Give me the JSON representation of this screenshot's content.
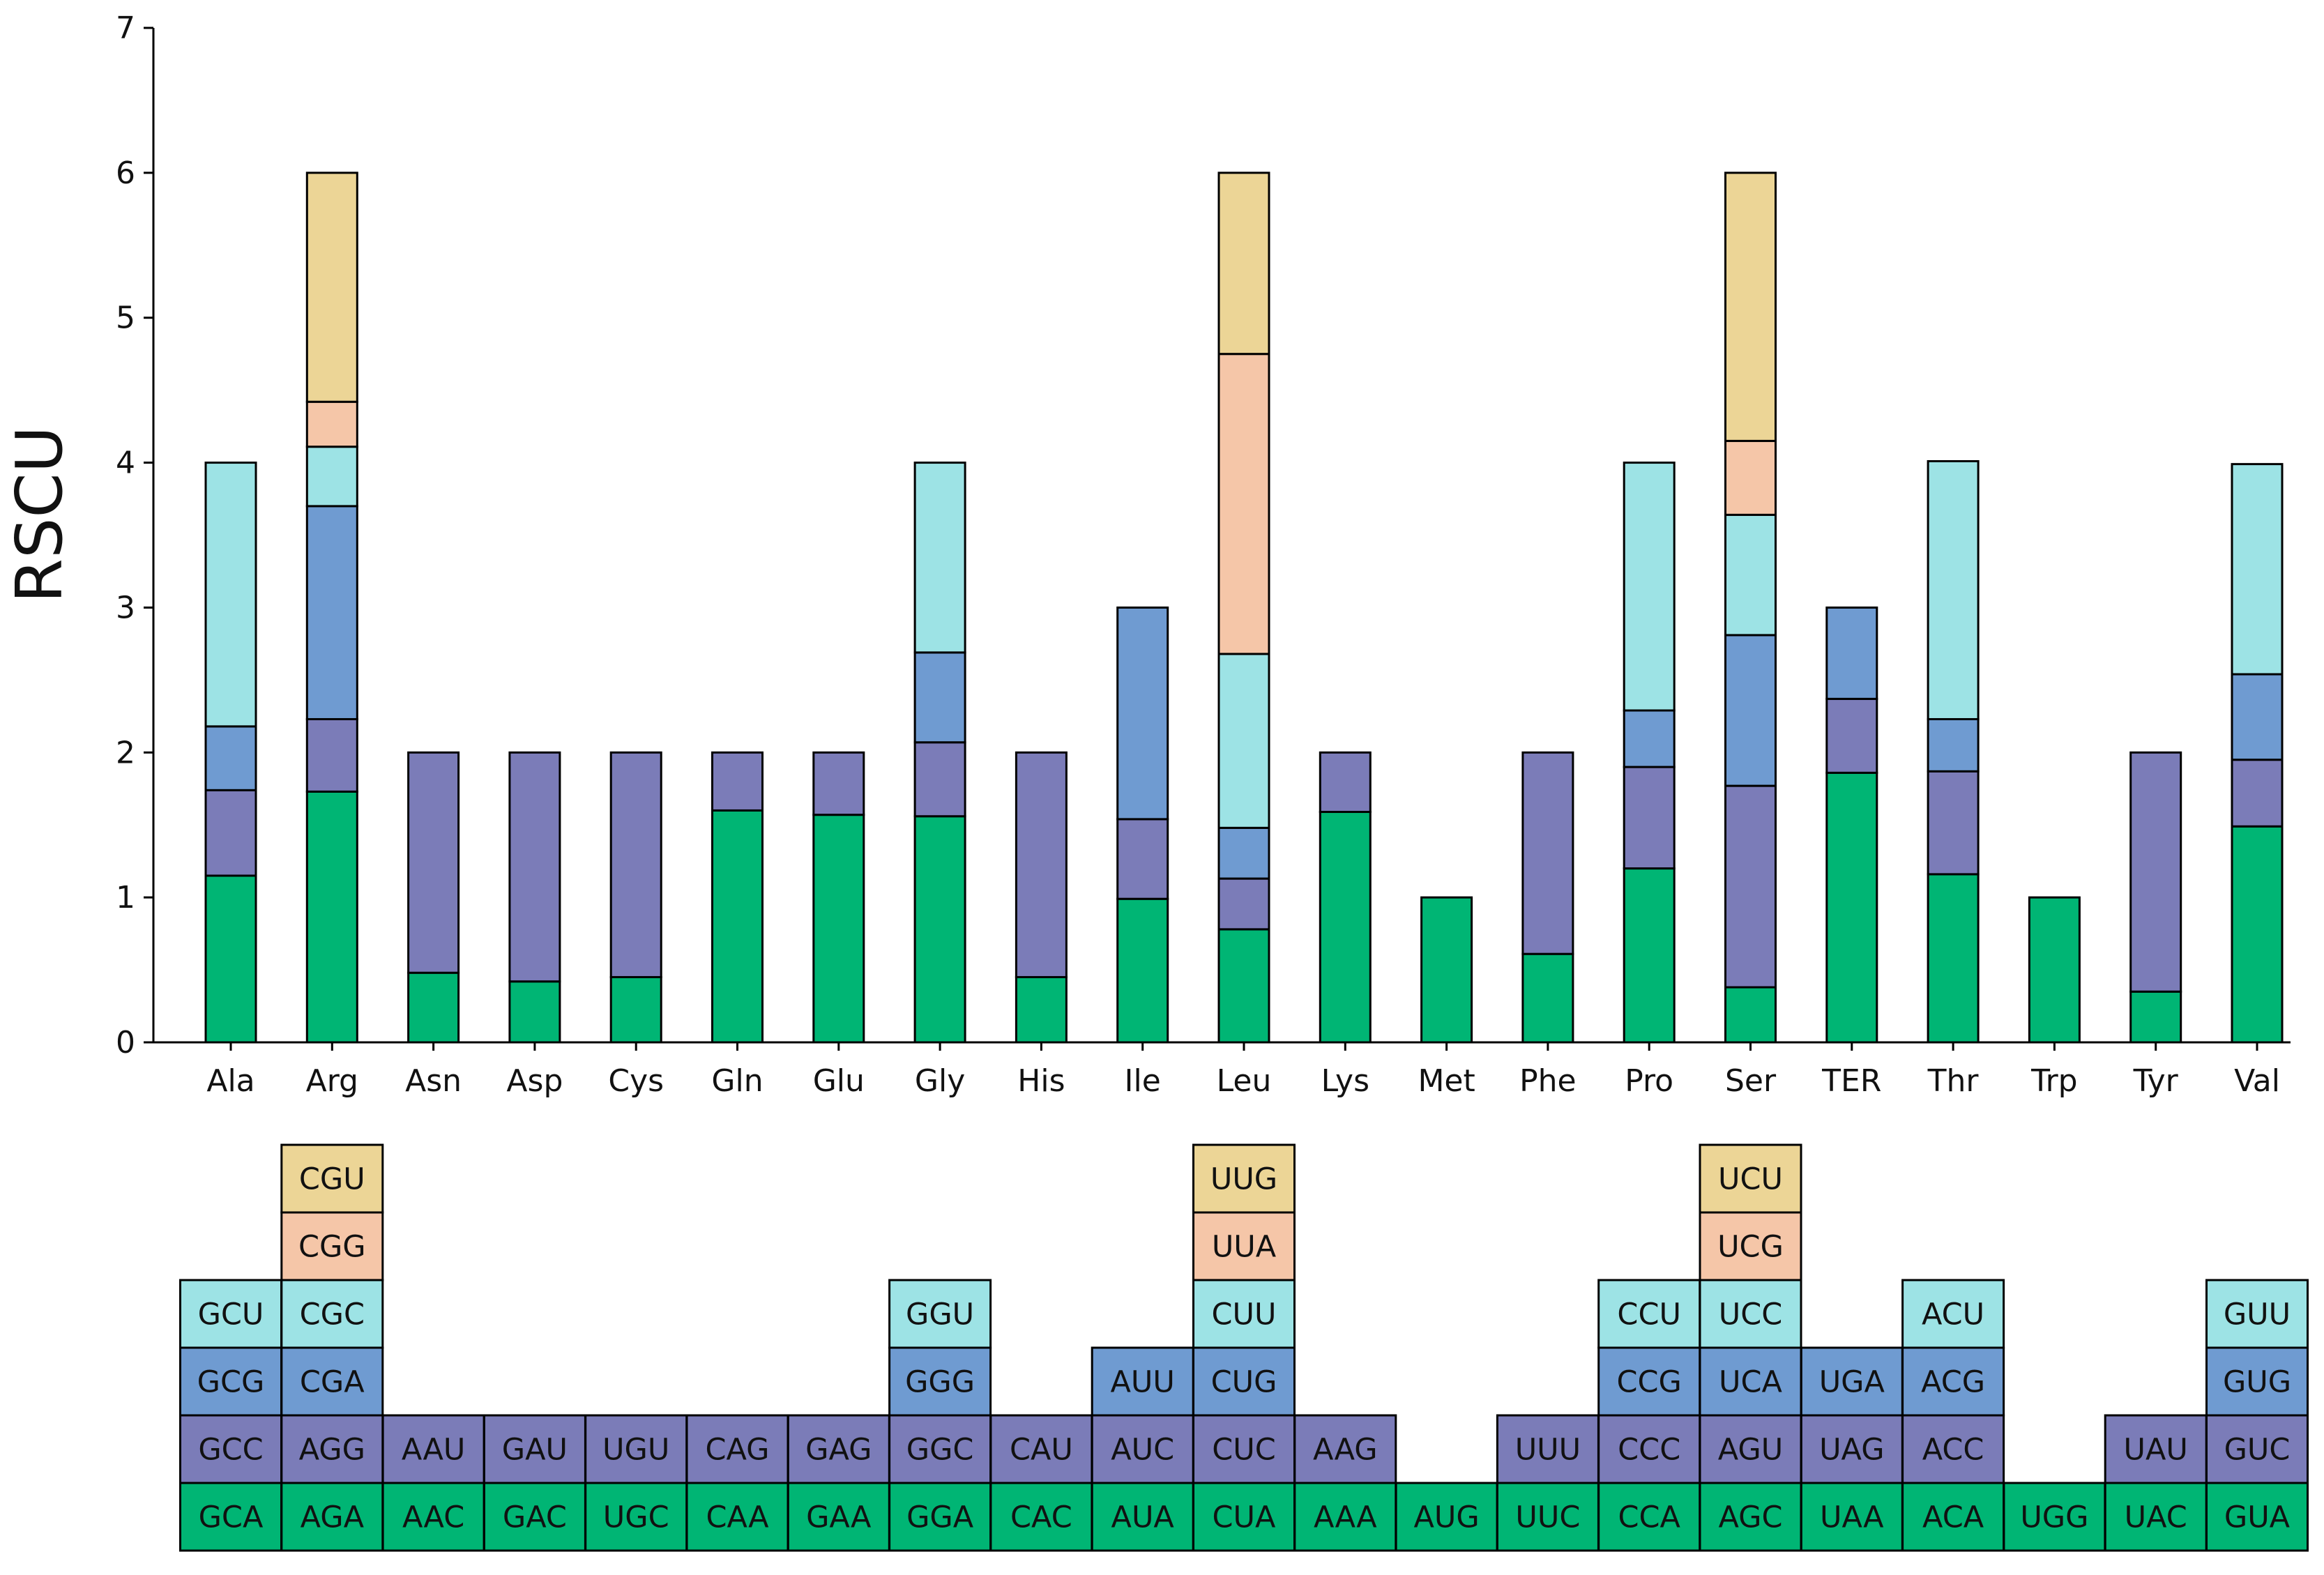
{
  "chart_data": {
    "type": "bar",
    "stacked": true,
    "ylabel": "RSCU",
    "xlabel": "",
    "ylim": [
      0,
      7
    ],
    "yticks": [
      "0",
      "1",
      "2",
      "3",
      "4",
      "5",
      "6",
      "7"
    ],
    "categories": [
      "Ala",
      "Arg",
      "Asn",
      "Asp",
      "Cys",
      "Gln",
      "Glu",
      "Gly",
      "His",
      "Ile",
      "Leu",
      "Lys",
      "Met",
      "Phe",
      "Pro",
      "Ser",
      "TER",
      "Thr",
      "Trp",
      "Tyr",
      "Val"
    ],
    "layer_colors": [
      "#00b574",
      "#7b7cb8",
      "#6f9bd1",
      "#9de3e5",
      "#f5c6a8",
      "#ecd596"
    ],
    "stacks": [
      {
        "aa": "Ala",
        "codons": [
          "GCA",
          "GCC",
          "GCG",
          "GCU"
        ],
        "values": [
          1.15,
          0.59,
          0.44,
          1.82
        ]
      },
      {
        "aa": "Arg",
        "codons": [
          "AGA",
          "AGG",
          "CGA",
          "CGC",
          "CGG",
          "CGU"
        ],
        "values": [
          1.73,
          0.5,
          1.47,
          0.41,
          0.31,
          1.58
        ]
      },
      {
        "aa": "Asn",
        "codons": [
          "AAC",
          "AAU"
        ],
        "values": [
          0.48,
          1.52
        ]
      },
      {
        "aa": "Asp",
        "codons": [
          "GAC",
          "GAU"
        ],
        "values": [
          0.42,
          1.58
        ]
      },
      {
        "aa": "Cys",
        "codons": [
          "UGC",
          "UGU"
        ],
        "values": [
          0.45,
          1.55
        ]
      },
      {
        "aa": "Gln",
        "codons": [
          "CAA",
          "CAG"
        ],
        "values": [
          1.6,
          0.4
        ]
      },
      {
        "aa": "Glu",
        "codons": [
          "GAA",
          "GAG"
        ],
        "values": [
          1.57,
          0.43
        ]
      },
      {
        "aa": "Gly",
        "codons": [
          "GGA",
          "GGC",
          "GGG",
          "GGU"
        ],
        "values": [
          1.56,
          0.51,
          0.62,
          1.31
        ]
      },
      {
        "aa": "His",
        "codons": [
          "CAC",
          "CAU"
        ],
        "values": [
          0.45,
          1.55
        ]
      },
      {
        "aa": "Ile",
        "codons": [
          "AUA",
          "AUC",
          "AUU"
        ],
        "values": [
          0.99,
          0.55,
          1.46
        ]
      },
      {
        "aa": "Leu",
        "codons": [
          "CUA",
          "CUC",
          "CUG",
          "CUU",
          "UUA",
          "UUG"
        ],
        "values": [
          0.78,
          0.35,
          0.35,
          1.2,
          2.07,
          1.25
        ]
      },
      {
        "aa": "Lys",
        "codons": [
          "AAA",
          "AAG"
        ],
        "values": [
          1.59,
          0.41
        ]
      },
      {
        "aa": "Met",
        "codons": [
          "AUG"
        ],
        "values": [
          1.0
        ]
      },
      {
        "aa": "Phe",
        "codons": [
          "UUC",
          "UUU"
        ],
        "values": [
          0.61,
          1.39
        ]
      },
      {
        "aa": "Pro",
        "codons": [
          "CCA",
          "CCC",
          "CCG",
          "CCU"
        ],
        "values": [
          1.2,
          0.7,
          0.39,
          1.71
        ]
      },
      {
        "aa": "Ser",
        "codons": [
          "AGC",
          "AGU",
          "UCA",
          "UCC",
          "UCG",
          "UCU"
        ],
        "values": [
          0.38,
          1.39,
          1.04,
          0.83,
          0.51,
          1.85
        ]
      },
      {
        "aa": "TER",
        "codons": [
          "UAA",
          "UAG",
          "UGA"
        ],
        "values": [
          1.86,
          0.51,
          0.63
        ]
      },
      {
        "aa": "Thr",
        "codons": [
          "ACA",
          "ACC",
          "ACG",
          "ACU"
        ],
        "values": [
          1.16,
          0.71,
          0.36,
          1.78
        ]
      },
      {
        "aa": "Trp",
        "codons": [
          "UGG"
        ],
        "values": [
          1.0
        ]
      },
      {
        "aa": "Tyr",
        "codons": [
          "UAC",
          "UAU"
        ],
        "values": [
          0.35,
          1.65
        ]
      },
      {
        "aa": "Val",
        "codons": [
          "GUA",
          "GUC",
          "GUG",
          "GUU"
        ],
        "values": [
          1.49,
          0.46,
          0.59,
          1.45
        ]
      }
    ]
  }
}
